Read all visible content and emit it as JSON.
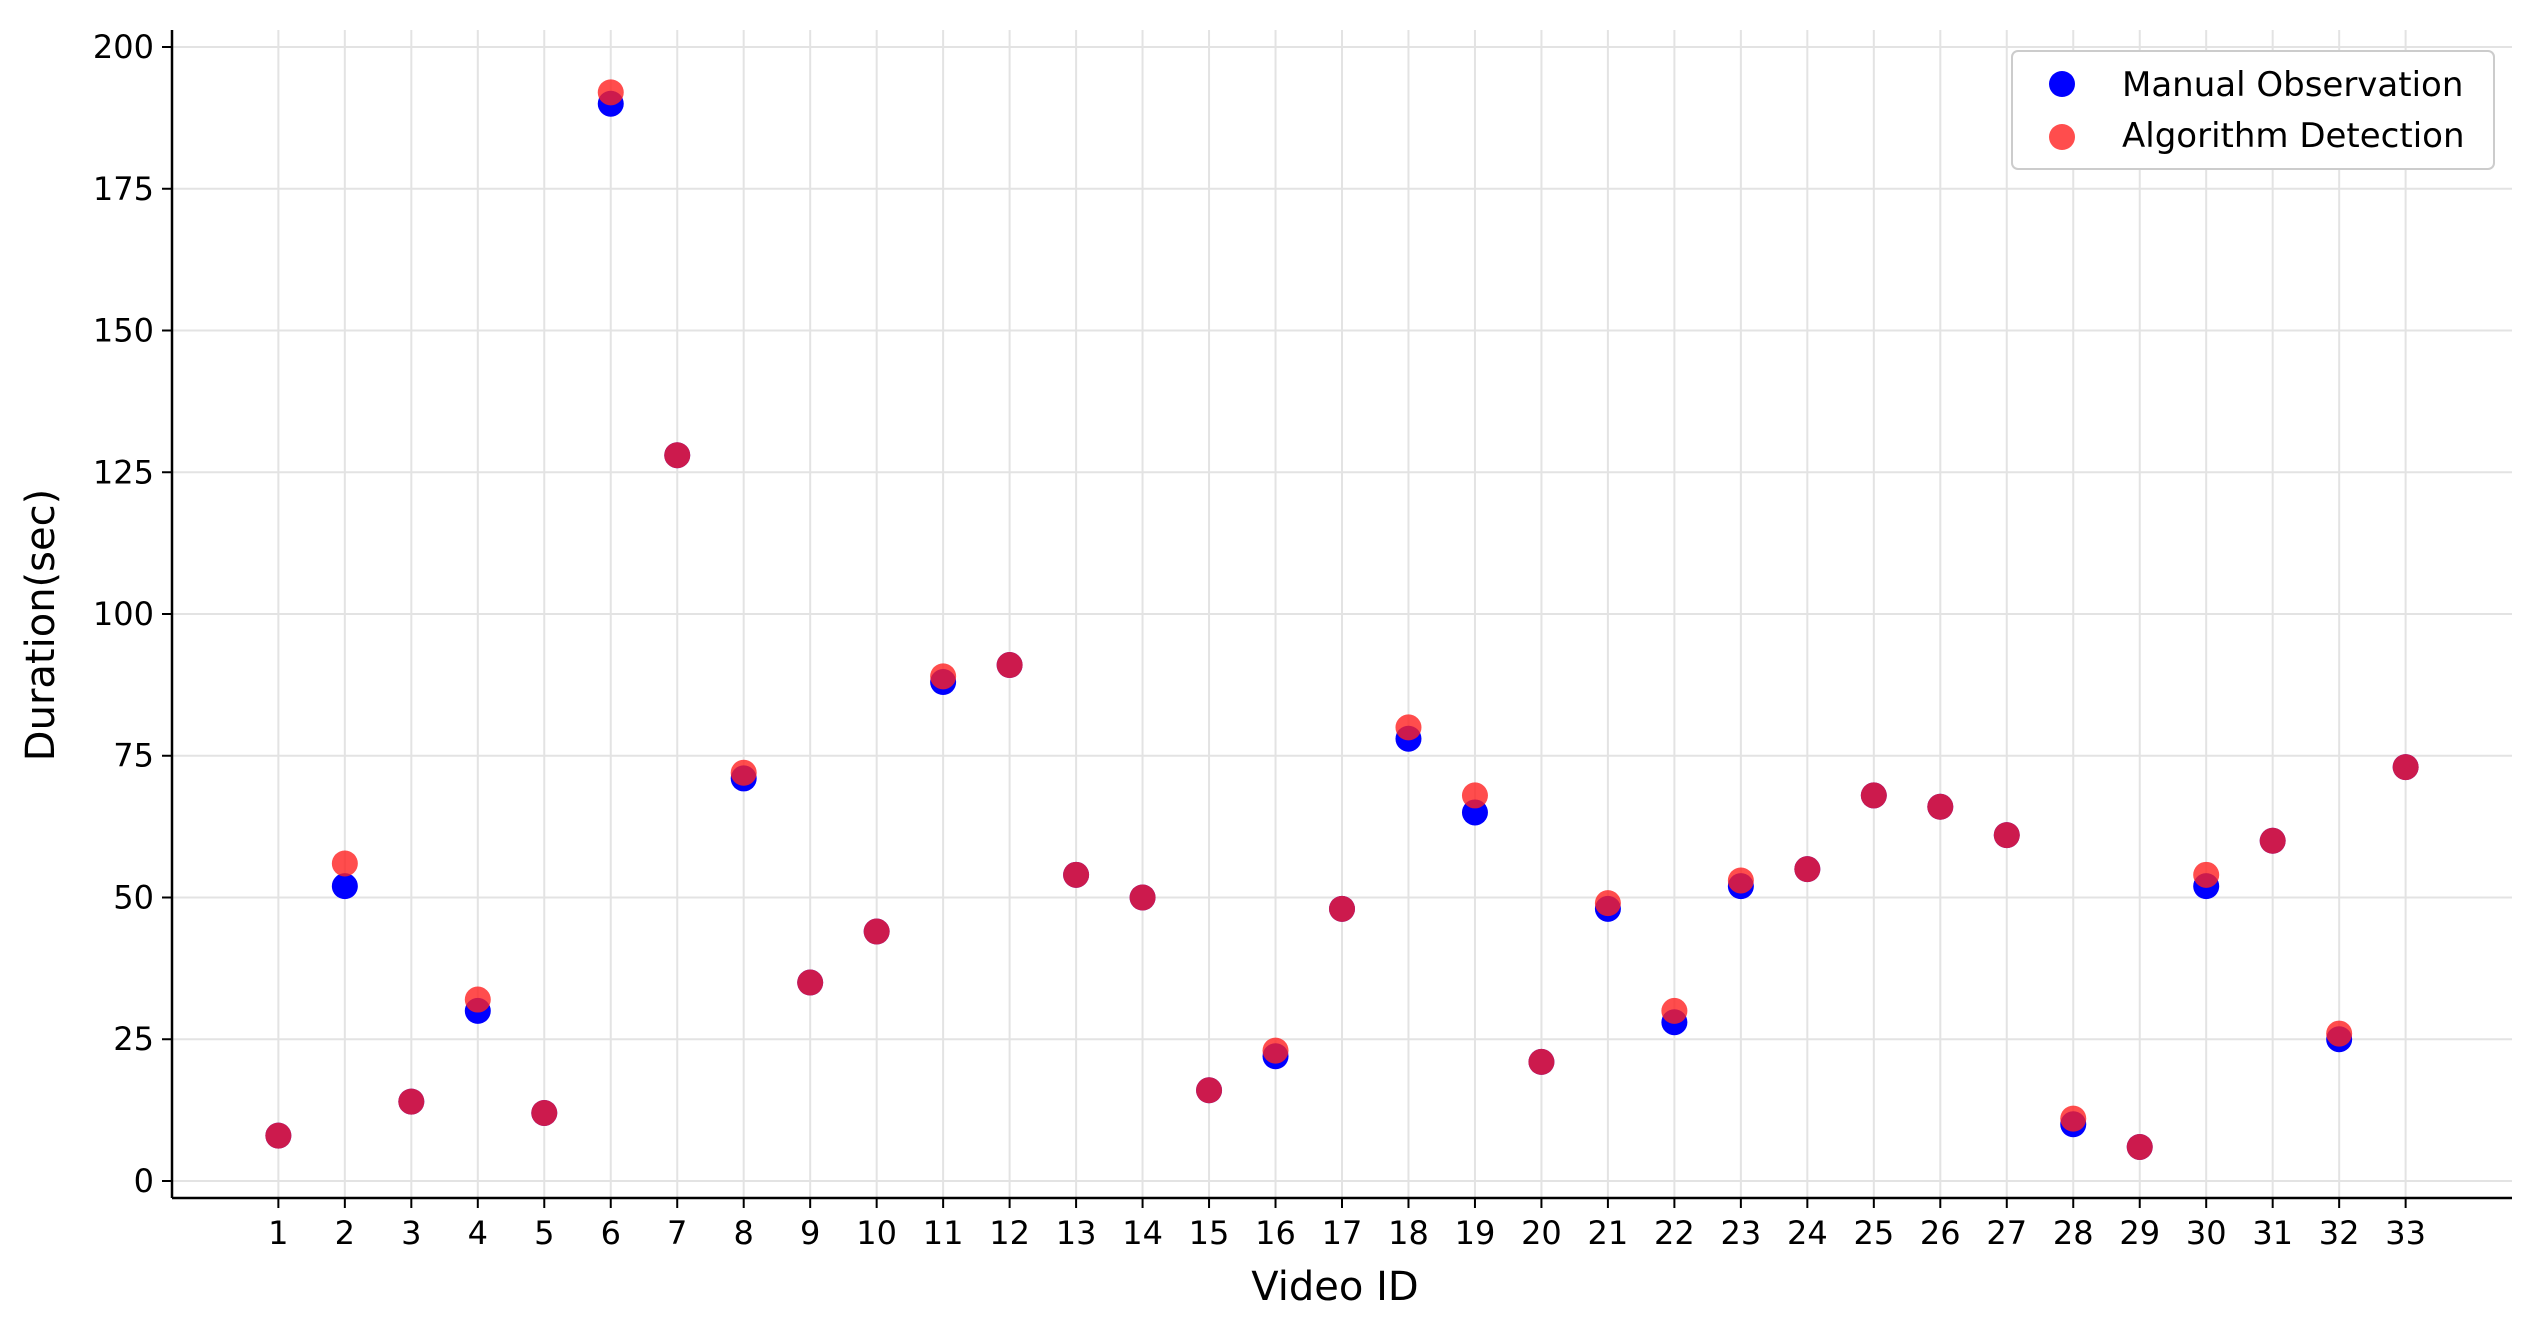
{
  "chart_data": {
    "type": "scatter",
    "xlabel": "Video ID",
    "ylabel": "Duration(sec)",
    "x": [
      1,
      2,
      3,
      4,
      5,
      6,
      7,
      8,
      9,
      10,
      11,
      12,
      13,
      14,
      15,
      16,
      17,
      18,
      19,
      20,
      21,
      22,
      23,
      24,
      25,
      26,
      27,
      28,
      29,
      30,
      31,
      32,
      33
    ],
    "xlim": [
      -0.6,
      34.6
    ],
    "ylim": [
      -3,
      203
    ],
    "yticks": [
      0,
      25,
      50,
      75,
      100,
      125,
      150,
      175,
      200
    ],
    "grid": true,
    "legend_position": "top-right",
    "series": [
      {
        "name": "Manual Observation",
        "color": "#0000ff",
        "values": [
          8,
          52,
          14,
          30,
          12,
          190,
          128,
          71,
          35,
          44,
          88,
          91,
          54,
          50,
          16,
          22,
          48,
          78,
          65,
          21,
          48,
          28,
          52,
          55,
          68,
          66,
          61,
          10,
          6,
          52,
          60,
          25,
          73
        ]
      },
      {
        "name": "Algorithm Detection",
        "color": "#ff2020",
        "values": [
          8,
          56,
          14,
          32,
          12,
          192,
          128,
          72,
          35,
          44,
          89,
          91,
          54,
          50,
          16,
          23,
          48,
          80,
          68,
          21,
          49,
          30,
          53,
          55,
          68,
          66,
          61,
          11,
          6,
          54,
          60,
          26,
          73
        ]
      }
    ]
  }
}
